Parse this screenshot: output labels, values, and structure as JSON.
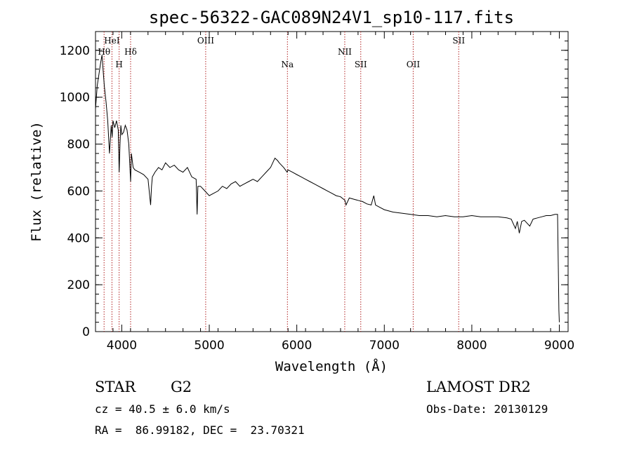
{
  "chart_data": {
    "type": "line",
    "title": "spec-56322-GAC089N24V1_sp10-117.fits",
    "xlabel": "Wavelength (Å)",
    "ylabel": "Flux (relative)",
    "xlim": [
      3700,
      9100
    ],
    "ylim": [
      0,
      1280
    ],
    "xticks": [
      4000,
      5000,
      6000,
      7000,
      8000,
      9000
    ],
    "yticks": [
      0,
      200,
      400,
      600,
      800,
      1000,
      1200
    ],
    "grid": false,
    "series": [
      {
        "x": [
          3700,
          3720,
          3740,
          3760,
          3775,
          3790,
          3800,
          3820,
          3840,
          3860,
          3880,
          3890,
          3900,
          3920,
          3940,
          3960,
          3970,
          3980,
          3990,
          4000,
          4020,
          4040,
          4060,
          4080,
          4101,
          4110,
          4130,
          4150,
          4200,
          4250,
          4300,
          4330,
          4340,
          4350,
          4380,
          4420,
          4460,
          4500,
          4550,
          4600,
          4650,
          4700,
          4750,
          4800,
          4850,
          4861,
          4870,
          4900,
          4950,
          5000,
          5050,
          5100,
          5150,
          5200,
          5250,
          5300,
          5350,
          5400,
          5450,
          5500,
          5550,
          5600,
          5650,
          5700,
          5750,
          5780,
          5800,
          5850,
          5890,
          5900,
          5950,
          6000,
          6050,
          6100,
          6150,
          6200,
          6250,
          6300,
          6350,
          6400,
          6450,
          6500,
          6550,
          6563,
          6600,
          6650,
          6700,
          6750,
          6800,
          6850,
          6880,
          6900,
          6950,
          7000,
          7100,
          7200,
          7300,
          7400,
          7500,
          7600,
          7700,
          7800,
          7900,
          8000,
          8100,
          8200,
          8300,
          8400,
          8450,
          8498,
          8520,
          8542,
          8570,
          8600,
          8662,
          8700,
          8750,
          8800,
          8850,
          8900,
          8950,
          8980,
          8995,
          9000
        ],
        "values": [
          950,
          1050,
          1100,
          1150,
          1180,
          1100,
          1050,
          980,
          900,
          760,
          880,
          830,
          900,
          870,
          900,
          860,
          680,
          800,
          880,
          840,
          850,
          880,
          860,
          800,
          640,
          760,
          700,
          690,
          680,
          670,
          650,
          540,
          620,
          660,
          680,
          700,
          690,
          720,
          700,
          710,
          690,
          680,
          700,
          660,
          650,
          500,
          620,
          620,
          600,
          580,
          590,
          600,
          620,
          610,
          630,
          640,
          620,
          630,
          640,
          650,
          640,
          660,
          680,
          700,
          740,
          730,
          720,
          700,
          680,
          690,
          680,
          670,
          660,
          650,
          640,
          630,
          620,
          610,
          600,
          590,
          580,
          575,
          560,
          540,
          570,
          565,
          560,
          555,
          545,
          540,
          580,
          540,
          530,
          520,
          510,
          505,
          500,
          495,
          495,
          490,
          495,
          490,
          490,
          495,
          490,
          490,
          490,
          485,
          480,
          440,
          470,
          420,
          470,
          475,
          450,
          480,
          485,
          490,
          495,
          495,
          500,
          500,
          90,
          40
        ]
      }
    ],
    "annotations": [
      {
        "label": "Hθ",
        "x": 3798,
        "row": 2
      },
      {
        "label": "HeI",
        "x": 3888,
        "row": 1
      },
      {
        "label": "H",
        "x": 3970,
        "row": 3
      },
      {
        "label": "Hδ",
        "x": 4101,
        "row": 2
      },
      {
        "label": "OIII",
        "x": 4959,
        "row": 1
      },
      {
        "label": "Na",
        "x": 5893,
        "row": 3
      },
      {
        "label": "NII",
        "x": 6548,
        "row": 2
      },
      {
        "label": "SII",
        "x": 6731,
        "row": 3
      },
      {
        "label": "OII",
        "x": 7330,
        "row": 3
      },
      {
        "label": "SII",
        "x": 7850,
        "row": 1
      }
    ]
  },
  "info": {
    "class": "STAR",
    "subclass": "G2",
    "cz": "cz = 40.5 ± 6.0 km/s",
    "radec": "RA =  86.99182, DEC =  23.70321",
    "survey": "LAMOST DR2",
    "obsdate": "Obs-Date: 20130129"
  }
}
